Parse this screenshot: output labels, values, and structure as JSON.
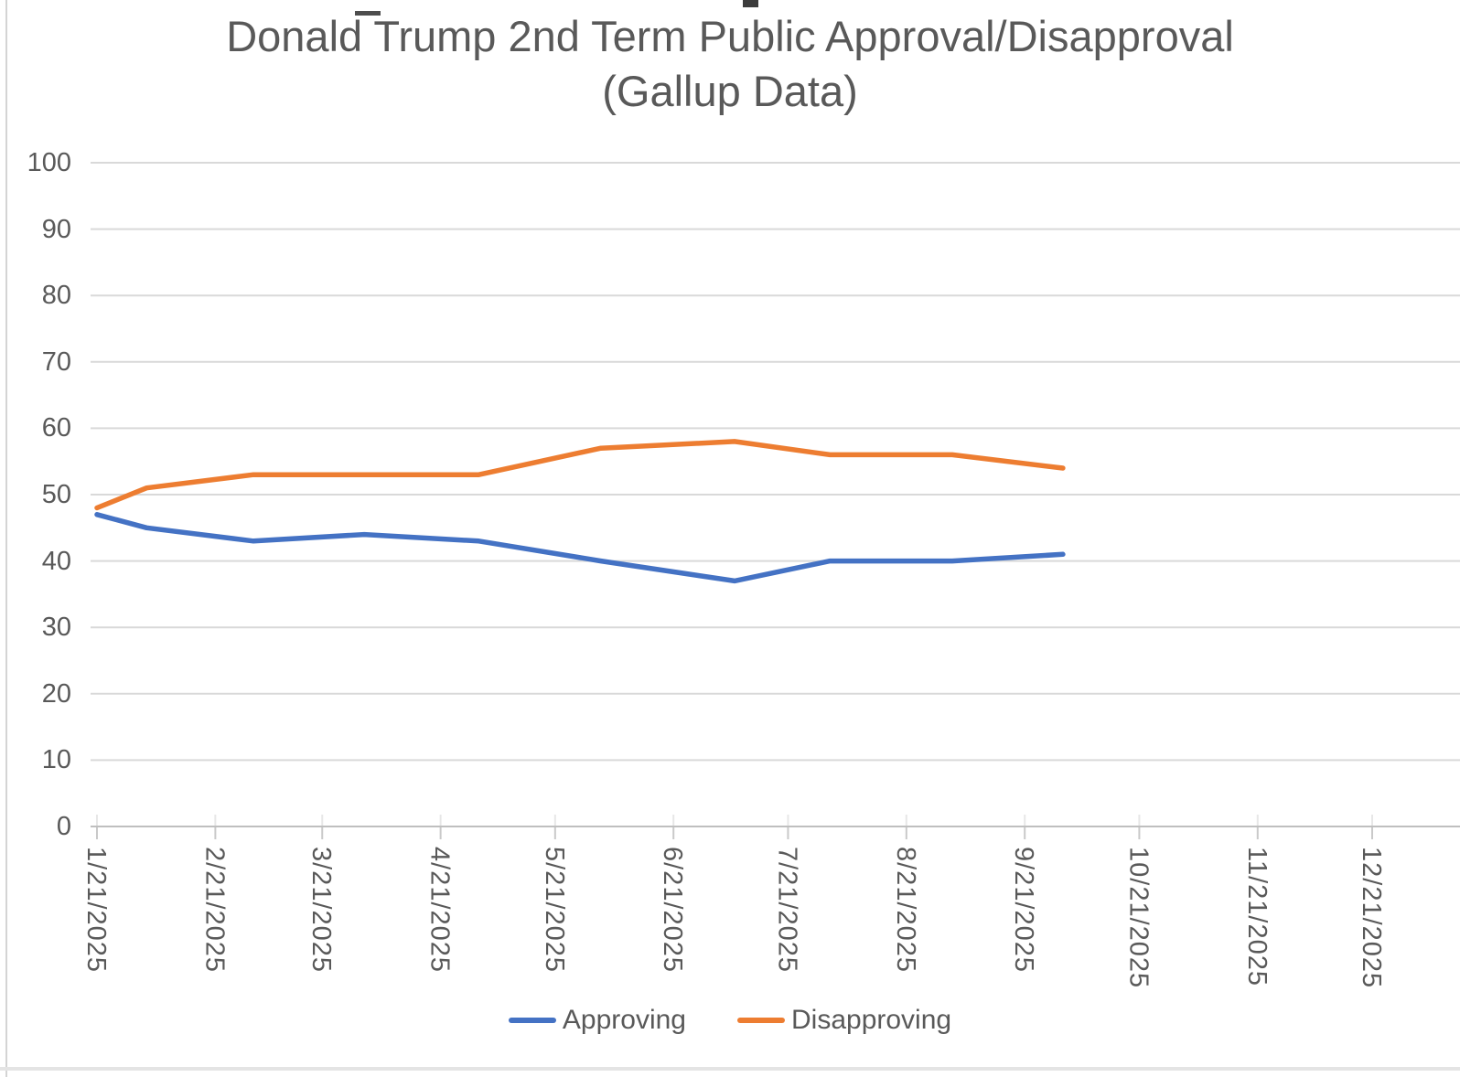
{
  "chart_data": {
    "type": "line",
    "title": "Donald Trump 2nd Term Public Approval/Disapproval",
    "subtitle": "(Gallup Data)",
    "x": [
      "1/21/2025",
      "2/3/2025",
      "3/3/2025",
      "4/1/2025",
      "5/1/2025",
      "6/2/2025",
      "7/7/2025",
      "8/1/2025",
      "9/2/2025",
      "10/1/2025"
    ],
    "series": [
      {
        "name": "Approving",
        "color": "#4472C4",
        "values": [
          47,
          45,
          43,
          44,
          43,
          40,
          37,
          40,
          40,
          41
        ]
      },
      {
        "name": "Disapproving",
        "color": "#ED7D31",
        "values": [
          48,
          51,
          53,
          53,
          53,
          57,
          58,
          56,
          56,
          54
        ]
      }
    ],
    "x_tick_labels": [
      "1/21/2025",
      "2/21/2025",
      "3/21/2025",
      "4/21/2025",
      "5/21/2025",
      "6/21/2025",
      "7/21/2025",
      "8/21/2025",
      "9/21/2025",
      "10/21/2025",
      "11/21/2025",
      "12/21/2025"
    ],
    "y_ticks": [
      0,
      10,
      20,
      30,
      40,
      50,
      60,
      70,
      80,
      90,
      100
    ],
    "ylim": [
      0,
      100
    ],
    "grid": true,
    "legend_position": "bottom",
    "axis_text_color": "#595959",
    "gridline_color": "#D9D9D9",
    "axis_line_color": "#BFBFBF",
    "tick_color": "#C9C9C9"
  }
}
